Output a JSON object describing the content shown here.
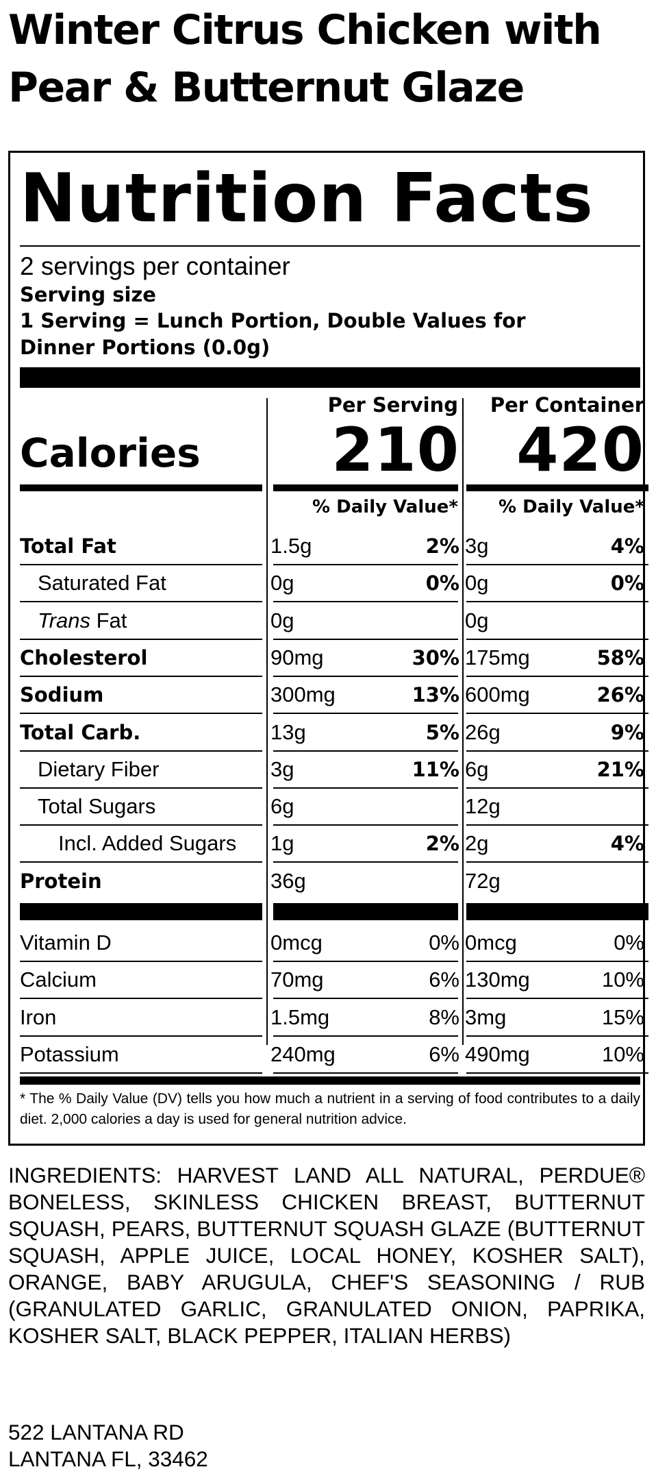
{
  "product": {
    "title_line1": "Winter Citrus Chicken with",
    "title_line2": "Pear & Butternut Glaze"
  },
  "label": {
    "heading": "Nutrition Facts",
    "servings_per_container": "2 servings per container",
    "serving_size_label": "Serving size",
    "serving_size_line1": "1 Serving = Lunch Portion, Double Values for",
    "serving_size_line2": "Dinner Portions (0.0g)",
    "calories_label": "Calories",
    "columns": [
      {
        "header": "Per Serving",
        "calories": "210",
        "dv_header": "% Daily Value*"
      },
      {
        "header": "Per Container",
        "calories": "420",
        "dv_header": "% Daily Value*"
      }
    ],
    "nutrients": [
      {
        "name": "Total Fat",
        "bold": true,
        "indent": 0,
        "serving": {
          "amount": "1.5g",
          "dv": "2%"
        },
        "container": {
          "amount": "3g",
          "dv": "4%"
        }
      },
      {
        "name": "Saturated Fat",
        "bold": false,
        "indent": 1,
        "serving": {
          "amount": "0g",
          "dv": "0%"
        },
        "container": {
          "amount": "0g",
          "dv": "0%"
        }
      },
      {
        "name_italic": "Trans",
        "name": " Fat",
        "bold": false,
        "indent": 1,
        "serving": {
          "amount": "0g",
          "dv": ""
        },
        "container": {
          "amount": "0g",
          "dv": ""
        }
      },
      {
        "name": "Cholesterol",
        "bold": true,
        "indent": 0,
        "serving": {
          "amount": "90mg",
          "dv": "30%"
        },
        "container": {
          "amount": "175mg",
          "dv": "58%"
        }
      },
      {
        "name": "Sodium",
        "bold": true,
        "indent": 0,
        "serving": {
          "amount": "300mg",
          "dv": "13%"
        },
        "container": {
          "amount": "600mg",
          "dv": "26%"
        }
      },
      {
        "name": "Total Carb.",
        "bold": true,
        "indent": 0,
        "serving": {
          "amount": "13g",
          "dv": "5%"
        },
        "container": {
          "amount": "26g",
          "dv": "9%"
        }
      },
      {
        "name": "Dietary Fiber",
        "bold": false,
        "indent": 1,
        "serving": {
          "amount": "3g",
          "dv": "11%"
        },
        "container": {
          "amount": "6g",
          "dv": "21%"
        }
      },
      {
        "name": "Total Sugars",
        "bold": false,
        "indent": 1,
        "serving": {
          "amount": "6g",
          "dv": ""
        },
        "container": {
          "amount": "12g",
          "dv": ""
        }
      },
      {
        "name": "Incl. Added Sugars",
        "bold": false,
        "indent": 2,
        "serving": {
          "amount": "1g",
          "dv": "2%"
        },
        "container": {
          "amount": "2g",
          "dv": "4%"
        }
      },
      {
        "name": "Protein",
        "bold": true,
        "indent": 0,
        "serving": {
          "amount": "36g",
          "dv": ""
        },
        "container": {
          "amount": "72g",
          "dv": ""
        }
      }
    ],
    "vitamins": [
      {
        "name": "Vitamin D",
        "serving": {
          "amount": "0mcg",
          "dv": "0%"
        },
        "container": {
          "amount": "0mcg",
          "dv": "0%"
        }
      },
      {
        "name": "Calcium",
        "serving": {
          "amount": "70mg",
          "dv": "6%"
        },
        "container": {
          "amount": "130mg",
          "dv": "10%"
        }
      },
      {
        "name": "Iron",
        "serving": {
          "amount": "1.5mg",
          "dv": "8%"
        },
        "container": {
          "amount": "3mg",
          "dv": "15%"
        }
      },
      {
        "name": "Potassium",
        "serving": {
          "amount": "240mg",
          "dv": "6%"
        },
        "container": {
          "amount": "490mg",
          "dv": "10%"
        }
      }
    ],
    "footnote": "* The % Daily Value (DV) tells you how much a nutrient in a serving of food contributes to a daily diet. 2,000 calories a day is used for general nutrition advice."
  },
  "ingredients": "INGREDIENTS: HARVEST LAND ALL NATURAL, PERDUE® BONELESS, SKINLESS CHICKEN BREAST, BUTTERNUT SQUASH, PEARS, BUTTERNUT SQUASH GLAZE (BUTTERNUT SQUASH, APPLE JUICE, LOCAL HONEY, KOSHER SALT), ORANGE, BABY ARUGULA, CHEF'S SEASONING / RUB (GRANULATED GARLIC, GRANULATED ONION, PAPRIKA, KOSHER SALT, BLACK PEPPER, ITALIAN HERBS)",
  "address": {
    "line1": "522 LANTANA RD",
    "line2": "LANTANA FL, 33462"
  }
}
